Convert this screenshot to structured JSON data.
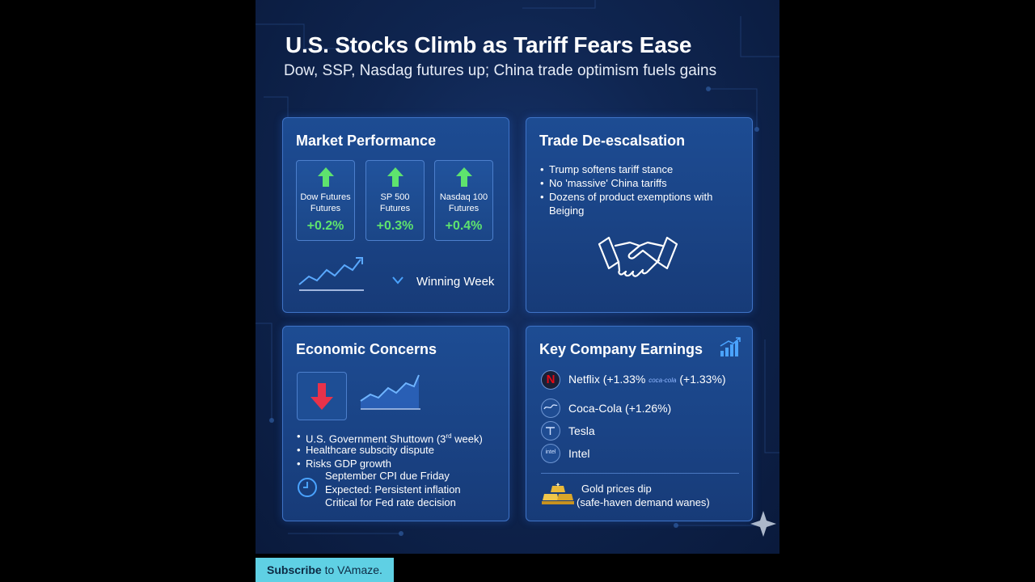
{
  "title": "U.S. Stocks Climb as Tariff Fears Ease",
  "subtitle": "Dow, SSP, Nasdag futures up; China trade optimism fuels gains",
  "market": {
    "title": "Market Performance",
    "futures": [
      {
        "label_line1": "Dow Futures",
        "label_line2": "Futures",
        "change": "+0.2%",
        "icon": "green-up-arrow-icon"
      },
      {
        "label_line1": "SP 500",
        "label_line2": "Futures",
        "change": "+0.3%",
        "icon": "green-up-arrow-icon"
      },
      {
        "label_line1": "Nasdaq 100",
        "label_line2": "Futures",
        "change": "+0.4%",
        "icon": "green-up-arrow-icon"
      }
    ],
    "winning_week": "Winning Week",
    "positive_color": "#5ee36e"
  },
  "trade": {
    "title": "Trade De-escalsation",
    "bullets": [
      "Trump softens tariff stance",
      "No 'massive' China tariffs",
      "Dozens of product exemptions with Beiging"
    ],
    "icon": "handshake-icon"
  },
  "economic": {
    "title": "Economic Concerns",
    "bullets": [
      "U.S. Government Shuttown (3",
      "Healthcare subscity dispute",
      "Risks GDP growth"
    ],
    "shutdown_sup": "rd",
    "shutdown_tail": " week)",
    "cpi_lines": [
      "September CPI due Friday",
      "Expected: Persistent inflation",
      "Critical for Fed rate decision"
    ],
    "negative_color": "#e8324a"
  },
  "earnings": {
    "title": "Key Company Earnings",
    "companies": [
      {
        "text": "Netflix (+1.33%",
        "badge": "coca-cola",
        "tail": " (+1.33%)"
      },
      {
        "text": "Coca-Cola (+1.26%)"
      },
      {
        "text": "Tesla",
        "icon_text": "Tesla"
      },
      {
        "text": "Intel",
        "icon_text": "intel"
      }
    ],
    "netflix_logo": "N",
    "gold_line1": "Gold prices dip",
    "gold_line2": "(safe-haven demand wanes)",
    "gold_color": "#e9b93a"
  },
  "subscribe": {
    "bold": "Subscribe",
    "rest": " to VAmaze."
  }
}
